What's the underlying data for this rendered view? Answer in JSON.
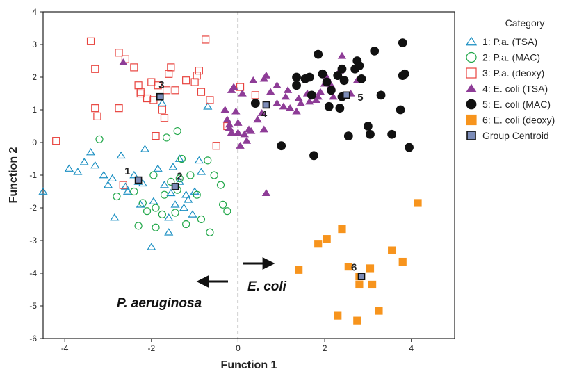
{
  "chart_data": {
    "type": "scatter",
    "xlabel": "Function 1",
    "ylabel": "Function 2",
    "xlim": [
      -4.5,
      5
    ],
    "ylim": [
      -6,
      4
    ],
    "xticks": [
      -4,
      -2,
      0,
      2,
      4
    ],
    "yticks": [
      4,
      3,
      2,
      1,
      0,
      -1,
      -2,
      -3,
      -4,
      -5,
      -6
    ],
    "grid": false,
    "legend_title": "Category",
    "legend_placement": "right",
    "series": [
      {
        "name": "1: P.a. (TSA)",
        "marker": "triangle-open",
        "color": "#1a8fc2",
        "points": [
          [
            -4.5,
            -1.5
          ],
          [
            -3.9,
            -0.8
          ],
          [
            -3.7,
            -0.9
          ],
          [
            -3.55,
            -0.6
          ],
          [
            -3.4,
            -0.3
          ],
          [
            -3.3,
            -0.7
          ],
          [
            -3.1,
            -1.0
          ],
          [
            -3.0,
            -1.3
          ],
          [
            -2.9,
            -1.1
          ],
          [
            -2.85,
            -2.3
          ],
          [
            -2.7,
            -0.4
          ],
          [
            -2.6,
            -1.35
          ],
          [
            -2.55,
            -1.5
          ],
          [
            -2.4,
            -1.0
          ],
          [
            -2.3,
            -1.2
          ],
          [
            -2.25,
            -1.9
          ],
          [
            -2.2,
            -1.25
          ],
          [
            -2.15,
            -0.2
          ],
          [
            -2.0,
            -3.2
          ],
          [
            -1.95,
            -1.8
          ],
          [
            -1.85,
            -0.8
          ],
          [
            -1.75,
            1.2
          ],
          [
            -1.7,
            -1.3
          ],
          [
            -1.6,
            -2.3
          ],
          [
            -1.6,
            -2.75
          ],
          [
            -1.55,
            -1.55
          ],
          [
            -1.5,
            -0.75
          ],
          [
            -1.45,
            -1.9
          ],
          [
            -1.35,
            -1.2
          ],
          [
            -1.25,
            -2.0
          ],
          [
            -1.2,
            -1.6
          ],
          [
            -1.15,
            -1.75
          ],
          [
            -1.05,
            -2.2
          ],
          [
            -1.0,
            -1.5
          ],
          [
            -0.9,
            -0.55
          ],
          [
            -0.85,
            -0.9
          ],
          [
            -0.7,
            1.1
          ],
          [
            -1.35,
            -0.5
          ]
        ]
      },
      {
        "name": "2: P.a. (MAC)",
        "marker": "circle-open",
        "color": "#22a84a",
        "points": [
          [
            -3.2,
            0.1
          ],
          [
            -2.8,
            -1.65
          ],
          [
            -2.4,
            -1.5
          ],
          [
            -2.3,
            -2.55
          ],
          [
            -2.2,
            -1.85
          ],
          [
            -2.1,
            -2.1
          ],
          [
            -1.95,
            -1.0
          ],
          [
            -1.9,
            -2.6
          ],
          [
            -1.65,
            0.15
          ],
          [
            -1.55,
            -1.2
          ],
          [
            -1.45,
            -2.15
          ],
          [
            -1.4,
            -1.45
          ],
          [
            -1.35,
            -1.1
          ],
          [
            -1.3,
            -0.5
          ],
          [
            -1.2,
            -2.5
          ],
          [
            -1.1,
            -1.0
          ],
          [
            -0.95,
            -1.6
          ],
          [
            -0.85,
            -2.35
          ],
          [
            -0.7,
            -0.55
          ],
          [
            -0.55,
            -1.0
          ],
          [
            -0.4,
            -1.3
          ],
          [
            -0.35,
            -1.9
          ],
          [
            -0.25,
            -2.1
          ],
          [
            -0.65,
            -2.75
          ],
          [
            -1.7,
            -1.6
          ],
          [
            -1.4,
            0.35
          ],
          [
            -1.75,
            -2.2
          ],
          [
            -1.9,
            -2.0
          ]
        ]
      },
      {
        "name": "3: P.a. (deoxy)",
        "marker": "square-open",
        "color": "#e8433e",
        "points": [
          [
            -4.2,
            0.05
          ],
          [
            -3.4,
            3.1
          ],
          [
            -3.3,
            2.25
          ],
          [
            -3.3,
            1.05
          ],
          [
            -3.25,
            0.8
          ],
          [
            -2.75,
            2.75
          ],
          [
            -2.75,
            1.05
          ],
          [
            -2.6,
            2.55
          ],
          [
            -2.4,
            2.3
          ],
          [
            -2.3,
            1.75
          ],
          [
            -2.25,
            1.55
          ],
          [
            -2.25,
            1.5
          ],
          [
            -2.1,
            1.35
          ],
          [
            -2.0,
            1.85
          ],
          [
            -1.95,
            1.3
          ],
          [
            -1.9,
            0.2
          ],
          [
            -1.85,
            1.75
          ],
          [
            -1.75,
            1.0
          ],
          [
            -1.7,
            0.75
          ],
          [
            -1.65,
            1.6
          ],
          [
            -1.6,
            2.1
          ],
          [
            -1.55,
            2.3
          ],
          [
            -1.45,
            1.6
          ],
          [
            -1.2,
            1.9
          ],
          [
            -1.0,
            1.85
          ],
          [
            -0.95,
            2.05
          ],
          [
            -0.9,
            2.2
          ],
          [
            -0.85,
            1.55
          ],
          [
            -0.75,
            3.15
          ],
          [
            -0.65,
            1.3
          ],
          [
            -0.5,
            -0.1
          ],
          [
            -0.25,
            0.5
          ],
          [
            0.05,
            1.7
          ],
          [
            0.4,
            1.45
          ],
          [
            -2.65,
            -1.3
          ]
        ]
      },
      {
        "name": "4: E. coli (TSA)",
        "marker": "triangle-filled",
        "color": "#8e3c97",
        "points": [
          [
            -2.65,
            2.45
          ],
          [
            -0.3,
            1.0
          ],
          [
            -0.25,
            0.7
          ],
          [
            -0.2,
            0.45
          ],
          [
            -0.2,
            0.55
          ],
          [
            -0.15,
            0.3
          ],
          [
            -0.15,
            1.6
          ],
          [
            -0.1,
            1.7
          ],
          [
            -0.05,
            0.95
          ],
          [
            0.0,
            0.6
          ],
          [
            0.0,
            0.3
          ],
          [
            0.05,
            -0.1
          ],
          [
            0.1,
            1.5
          ],
          [
            0.15,
            0.25
          ],
          [
            0.2,
            0.05
          ],
          [
            0.25,
            0.4
          ],
          [
            0.3,
            0.35
          ],
          [
            0.35,
            1.9
          ],
          [
            0.4,
            1.2
          ],
          [
            0.45,
            0.7
          ],
          [
            0.55,
            0.9
          ],
          [
            0.6,
            1.95
          ],
          [
            0.6,
            0.4
          ],
          [
            0.65,
            2.05
          ],
          [
            0.65,
            -1.55
          ],
          [
            0.75,
            1.55
          ],
          [
            0.9,
            1.2
          ],
          [
            0.9,
            1.75
          ],
          [
            1.05,
            1.1
          ],
          [
            1.1,
            1.4
          ],
          [
            1.15,
            1.6
          ],
          [
            1.2,
            1.05
          ],
          [
            1.35,
            0.95
          ],
          [
            1.4,
            1.35
          ],
          [
            1.45,
            1.2
          ],
          [
            1.6,
            1.5
          ],
          [
            1.65,
            1.25
          ],
          [
            1.8,
            1.3
          ],
          [
            1.85,
            1.4
          ],
          [
            1.9,
            1.55
          ],
          [
            2.0,
            1.8
          ],
          [
            2.05,
            2.0
          ],
          [
            2.15,
            1.75
          ],
          [
            2.2,
            1.4
          ],
          [
            2.35,
            2.2
          ],
          [
            2.4,
            2.65
          ],
          [
            2.6,
            1.5
          ],
          [
            2.75,
            1.9
          ]
        ]
      },
      {
        "name": "5: E. coli (MAC)",
        "marker": "circle-filled",
        "color": "#111111",
        "points": [
          [
            0.4,
            1.2
          ],
          [
            1.0,
            -0.1
          ],
          [
            1.35,
            2.0
          ],
          [
            1.35,
            1.75
          ],
          [
            1.55,
            1.95
          ],
          [
            1.65,
            2.0
          ],
          [
            1.7,
            1.45
          ],
          [
            1.75,
            -0.4
          ],
          [
            1.85,
            2.7
          ],
          [
            1.95,
            2.1
          ],
          [
            2.05,
            1.85
          ],
          [
            2.1,
            1.1
          ],
          [
            2.15,
            1.6
          ],
          [
            2.3,
            2.05
          ],
          [
            2.35,
            1.05
          ],
          [
            2.4,
            2.25
          ],
          [
            2.45,
            1.9
          ],
          [
            2.55,
            0.2
          ],
          [
            2.7,
            2.25
          ],
          [
            2.75,
            2.5
          ],
          [
            2.8,
            2.35
          ],
          [
            3.0,
            0.5
          ],
          [
            3.05,
            0.25
          ],
          [
            3.15,
            2.8
          ],
          [
            3.3,
            1.45
          ],
          [
            3.55,
            0.25
          ],
          [
            3.75,
            1.0
          ],
          [
            3.8,
            2.05
          ],
          [
            3.8,
            3.05
          ],
          [
            3.85,
            2.1
          ],
          [
            3.95,
            -0.15
          ],
          [
            2.85,
            1.95
          ],
          [
            2.4,
            1.4
          ]
        ]
      },
      {
        "name": "6: E. coli (deoxy)",
        "marker": "square-filled",
        "color": "#f7941d",
        "points": [
          [
            1.4,
            -3.9
          ],
          [
            1.85,
            -3.1
          ],
          [
            2.05,
            -2.95
          ],
          [
            2.3,
            -5.3
          ],
          [
            2.4,
            -2.65
          ],
          [
            2.55,
            -3.8
          ],
          [
            2.75,
            -5.45
          ],
          [
            2.8,
            -4.35
          ],
          [
            2.8,
            -4.1
          ],
          [
            3.05,
            -3.85
          ],
          [
            3.1,
            -4.35
          ],
          [
            3.25,
            -5.15
          ],
          [
            3.55,
            -3.3
          ],
          [
            3.8,
            -3.65
          ],
          [
            4.15,
            -1.85
          ]
        ]
      },
      {
        "name": "Group Centroid",
        "marker": "square-centroid",
        "color": "#7c8cb8",
        "points": [
          [
            -2.3,
            -1.15
          ],
          [
            -1.45,
            -1.35
          ],
          [
            -1.8,
            1.4
          ],
          [
            0.65,
            1.15
          ],
          [
            2.5,
            1.45
          ],
          [
            2.85,
            -4.1
          ]
        ],
        "labels": [
          "1",
          "2",
          "3",
          "4",
          "5",
          "6"
        ]
      }
    ],
    "annotations": {
      "left_label": "P. aeruginosa",
      "right_label": "E. coli",
      "divider_x": 0
    }
  }
}
